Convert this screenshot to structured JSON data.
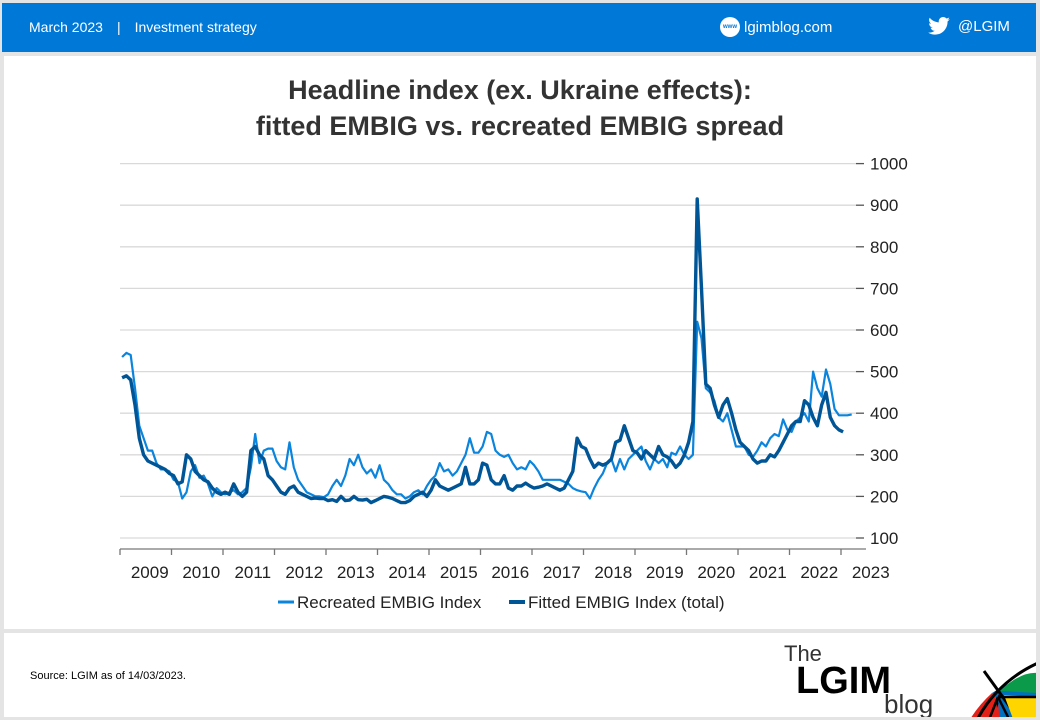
{
  "header": {
    "date": "March 2023",
    "separator": "|",
    "category": "Investment strategy",
    "website": "lgimblog.com",
    "website_icon": "www-globe-icon",
    "twitter": "@LGIM",
    "twitter_icon": "twitter-bird-icon",
    "color": "#0078d7"
  },
  "footer": {
    "source": "Source: LGIM as of 14/03/2023.",
    "logo": {
      "the": "The",
      "name": "LGIM",
      "blog": "blog"
    }
  },
  "chart_data": {
    "type": "line",
    "title": "Headline index (ex. Ukraine effects):",
    "subtitle": "fitted EMBIG vs. recreated EMBIG spread",
    "xlabel": "",
    "ylabel": "",
    "ylim": [
      100,
      1000
    ],
    "yticks": [
      "100",
      "200",
      "300",
      "400",
      "500",
      "600",
      "700",
      "800",
      "900",
      "1000"
    ],
    "xticks": [
      "2009",
      "2010",
      "2011",
      "2012",
      "2013",
      "2014",
      "2015",
      "2016",
      "2017",
      "2018",
      "2019",
      "2020",
      "2021",
      "2022",
      "2023"
    ],
    "grid": true,
    "y_axis_side": "right",
    "legend": "bottom",
    "x_start": "2009-01",
    "frequency": "monthly",
    "series": [
      {
        "name": "Recreated EMBIG Index",
        "color": "#0a84dc",
        "values": [
          535,
          545,
          540,
          460,
          370,
          340,
          310,
          310,
          280,
          265,
          265,
          260,
          240,
          235,
          195,
          210,
          260,
          275,
          245,
          250,
          230,
          200,
          220,
          210,
          205,
          210,
          215,
          205,
          210,
          220,
          270,
          350,
          280,
          310,
          315,
          315,
          285,
          270,
          265,
          330,
          270,
          240,
          225,
          210,
          205,
          200,
          200,
          198,
          205,
          225,
          240,
          225,
          250,
          290,
          275,
          300,
          270,
          255,
          265,
          245,
          275,
          240,
          230,
          215,
          205,
          205,
          195,
          200,
          210,
          215,
          205,
          225,
          240,
          250,
          280,
          260,
          265,
          250,
          260,
          280,
          300,
          340,
          305,
          305,
          320,
          355,
          350,
          310,
          300,
          295,
          300,
          280,
          265,
          270,
          265,
          285,
          275,
          260,
          240,
          240,
          240,
          240,
          240,
          235,
          230,
          220,
          215,
          212,
          210,
          195,
          220,
          240,
          255,
          280,
          290,
          260,
          290,
          265,
          290,
          300,
          310,
          320,
          285,
          265,
          290,
          280,
          290,
          270,
          305,
          300,
          320,
          300,
          290,
          300,
          620,
          580,
          460,
          450,
          430,
          390,
          380,
          400,
          360,
          320,
          320,
          320,
          300,
          295,
          310,
          330,
          320,
          340,
          350,
          345,
          385,
          360,
          355,
          380,
          390,
          400,
          380,
          500,
          460,
          440,
          505,
          470,
          410,
          395,
          395,
          395,
          397
        ]
      },
      {
        "name": "Fitted EMBIG Index (total)",
        "color": "#005596",
        "values": [
          485,
          490,
          480,
          420,
          340,
          300,
          285,
          280,
          275,
          270,
          265,
          255,
          250,
          230,
          235,
          300,
          290,
          260,
          250,
          240,
          235,
          220,
          210,
          205,
          210,
          205,
          230,
          210,
          200,
          210,
          310,
          320,
          300,
          290,
          250,
          240,
          225,
          210,
          205,
          220,
          225,
          210,
          205,
          200,
          195,
          196,
          195,
          195,
          190,
          192,
          188,
          200,
          190,
          191,
          200,
          192,
          191,
          193,
          185,
          190,
          195,
          200,
          198,
          195,
          190,
          185,
          185,
          190,
          200,
          205,
          210,
          200,
          215,
          240,
          225,
          220,
          215,
          220,
          225,
          230,
          270,
          230,
          230,
          240,
          280,
          275,
          240,
          230,
          230,
          250,
          220,
          215,
          225,
          225,
          232,
          225,
          220,
          222,
          225,
          230,
          225,
          220,
          215,
          220,
          240,
          260,
          340,
          320,
          315,
          290,
          270,
          280,
          275,
          280,
          290,
          330,
          335,
          370,
          340,
          310,
          305,
          290,
          310,
          300,
          290,
          320,
          300,
          295,
          285,
          270,
          280,
          300,
          330,
          380,
          915,
          700,
          470,
          460,
          420,
          390,
          420,
          435,
          400,
          360,
          330,
          320,
          310,
          290,
          280,
          285,
          285,
          300,
          295,
          310,
          330,
          350,
          370,
          380,
          380,
          430,
          420,
          390,
          370,
          420,
          450,
          390,
          370,
          360,
          355
        ]
      }
    ]
  }
}
